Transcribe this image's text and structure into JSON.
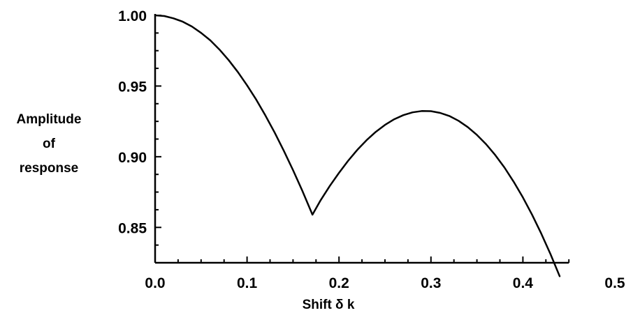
{
  "chart_data": {
    "type": "line",
    "title": "",
    "xlabel": "Shift δ k",
    "ylabel_lines": [
      "Amplitude",
      "of",
      "response"
    ],
    "xlim": [
      0.0,
      0.5
    ],
    "ylim": [
      0.825,
      1.0
    ],
    "x_ticks": [
      {
        "value": 0.0,
        "label": "0.0"
      },
      {
        "value": 0.1,
        "label": "0.1"
      },
      {
        "value": 0.2,
        "label": "0.2"
      },
      {
        "value": 0.3,
        "label": "0.3"
      },
      {
        "value": 0.4,
        "label": "0.4"
      },
      {
        "value": 0.5,
        "label": "0.5"
      }
    ],
    "y_ticks": [
      {
        "value": 1.0,
        "label": "1.00"
      },
      {
        "value": 0.95,
        "label": "0.95"
      },
      {
        "value": 0.9,
        "label": "0.90"
      },
      {
        "value": 0.85,
        "label": "0.85"
      }
    ],
    "grid": false,
    "series": [
      {
        "color": "#000000",
        "x": [
          0.0,
          0.01,
          0.02,
          0.03,
          0.04,
          0.05,
          0.06,
          0.07,
          0.08,
          0.09,
          0.1,
          0.11,
          0.12,
          0.13,
          0.14,
          0.15,
          0.16,
          0.1711,
          0.18,
          0.19,
          0.2,
          0.21,
          0.22,
          0.23,
          0.24,
          0.25,
          0.26,
          0.27,
          0.28,
          0.29,
          0.3,
          0.31,
          0.32,
          0.33,
          0.34,
          0.35,
          0.36,
          0.37,
          0.38,
          0.39,
          0.4,
          0.41,
          0.42,
          0.43,
          0.44
        ],
        "y": [
          1.0,
          0.9995,
          0.9979,
          0.9955,
          0.9921,
          0.9876,
          0.9823,
          0.9758,
          0.9683,
          0.9599,
          0.9505,
          0.9403,
          0.9291,
          0.9171,
          0.9042,
          0.8905,
          0.876,
          0.859,
          0.8692,
          0.8793,
          0.8886,
          0.8972,
          0.9049,
          0.9117,
          0.9176,
          0.9225,
          0.9265,
          0.9294,
          0.9314,
          0.9323,
          0.9322,
          0.931,
          0.9288,
          0.9254,
          0.921,
          0.9154,
          0.9088,
          0.9011,
          0.8923,
          0.8823,
          0.8712,
          0.8589,
          0.8456,
          0.8311,
          0.8155
        ]
      }
    ]
  }
}
